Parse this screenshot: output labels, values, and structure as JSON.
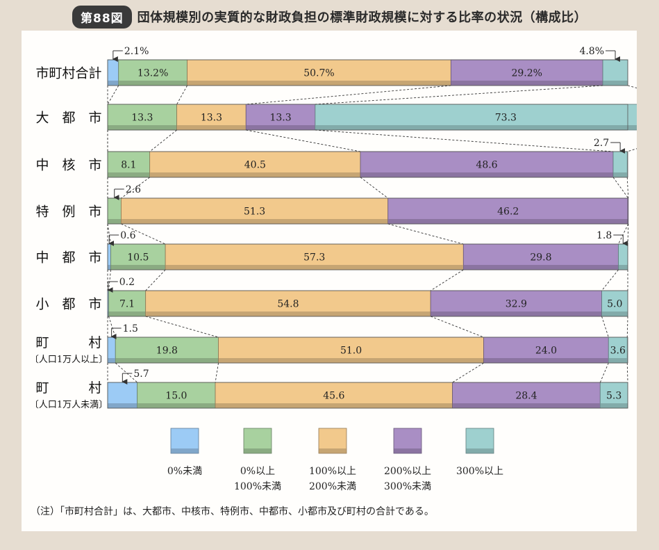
{
  "header": {
    "fig_label": "第88図",
    "title": "団体規模別の実質的な財政負担の標準財政規模に対する比率の状況（構成比）"
  },
  "colors": [
    "#9ccbf5",
    "#a8d19f",
    "#f2c98c",
    "#a98ec4",
    "#9ed0cf"
  ],
  "chart_data": {
    "type": "bar",
    "stacked": true,
    "orientation": "horizontal",
    "normalized_to": 100,
    "categories": [
      {
        "line1": "市町村合計",
        "line2": ""
      },
      {
        "line1": "大　都　市",
        "line2": ""
      },
      {
        "line1": "中　核　市",
        "line2": ""
      },
      {
        "line1": "特　例　市",
        "line2": ""
      },
      {
        "line1": "中　都　市",
        "line2": ""
      },
      {
        "line1": "小　都　市",
        "line2": ""
      },
      {
        "line1": "町　　　村",
        "line2": "〔人口1万人以上〕"
      },
      {
        "line1": "町　　　村",
        "line2": "〔人口1万人未満〕"
      }
    ],
    "series": [
      {
        "name": "0%未満",
        "values": [
          2.1,
          0,
          0,
          0,
          0.6,
          0.2,
          1.5,
          5.7
        ]
      },
      {
        "name": "0%以上\n100%未満",
        "values": [
          13.2,
          13.3,
          8.1,
          2.6,
          10.5,
          7.1,
          19.8,
          15.0
        ]
      },
      {
        "name": "100%以上\n200%未満",
        "values": [
          50.7,
          13.3,
          40.5,
          51.3,
          57.3,
          54.8,
          51.0,
          45.6
        ]
      },
      {
        "name": "200%以上\n300%未満",
        "values": [
          29.2,
          13.3,
          48.6,
          46.2,
          29.8,
          32.9,
          24.0,
          28.4
        ]
      },
      {
        "name": "300%以上",
        "values": [
          4.8,
          73.3,
          2.7,
          0,
          1.8,
          5.0,
          3.6,
          5.3
        ]
      }
    ],
    "labels": [
      [
        "2.1%",
        "13.2%",
        "50.7%",
        "29.2%",
        "4.8%"
      ],
      [
        "",
        "13.3",
        "13.3",
        "13.3",
        "73.3"
      ],
      [
        "",
        "8.1",
        "40.5",
        "48.6",
        "2.7"
      ],
      [
        "",
        "2.6",
        "51.3",
        "46.2",
        ""
      ],
      [
        "0.6",
        "10.5",
        "57.3",
        "29.8",
        "1.8"
      ],
      [
        "0.2",
        "7.1",
        "54.8",
        "32.9",
        "5.0"
      ],
      [
        "1.5",
        "19.8",
        "51.0",
        "24.0",
        "3.6"
      ],
      [
        "5.7",
        "15.0",
        "45.6",
        "28.4",
        "5.3"
      ]
    ],
    "callouts": [
      [
        [
          0,
          "left"
        ],
        [
          4,
          "right"
        ]
      ],
      [],
      [
        [
          4,
          "right"
        ]
      ],
      [
        [
          1,
          "left"
        ]
      ],
      [
        [
          0,
          "left"
        ],
        [
          4,
          "right"
        ]
      ],
      [
        [
          0,
          "left"
        ]
      ],
      [
        [
          0,
          "left"
        ]
      ],
      [
        [
          0,
          "left"
        ]
      ]
    ],
    "legend_position": "bottom"
  },
  "note": "（注）「市町村合計」は、大都市、中核市、特例市、中都市、小都市及び町村の合計である。"
}
